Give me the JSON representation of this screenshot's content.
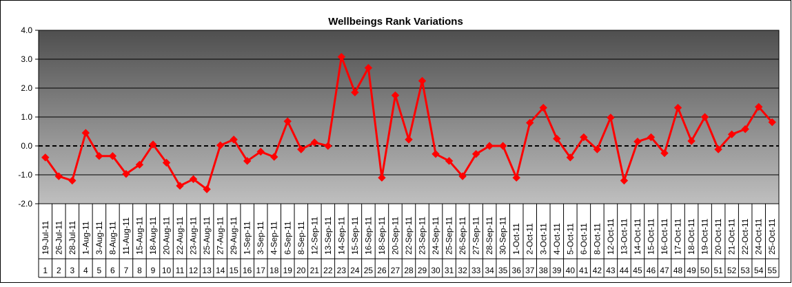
{
  "chart_data": {
    "type": "line",
    "title": "Wellbeings Rank Variations",
    "xlabel": "",
    "ylabel": "",
    "ylim": [
      -2.0,
      4.0
    ],
    "y_ticks": [
      "4.0",
      "3.0",
      "2.0",
      "1.0",
      "0.0",
      "-1.0",
      "-2.0"
    ],
    "grid": true,
    "legend": "none",
    "colors": {
      "line": "#ff0000",
      "plot_top": "#4f4f4f",
      "plot_bottom": "#bfbfbf",
      "grid": "#000000"
    },
    "categories": [
      "19-Jul-11",
      "26-Jul-11",
      "28-Jul-11",
      "1-Aug-11",
      "3-Aug-11",
      "8-Aug-11",
      "11-Aug-11",
      "15-Aug-11",
      "18-Aug-11",
      "20-Aug-11",
      "22-Aug-11",
      "23-Aug-11",
      "25-Aug-11",
      "27-Aug-11",
      "29-Aug-11",
      "1-Sep-11",
      "3-Sep-11",
      "4-Sep-11",
      "6-Sep-11",
      "8-Sep-11",
      "12-Sep-11",
      "13-Sep-11",
      "14-Sep-11",
      "15-Sep-11",
      "16-Sep-11",
      "18-Sep-11",
      "20-Sep-11",
      "22-Sep-11",
      "23-Sep-11",
      "24-Sep-11",
      "25-Sep-11",
      "26-Sep-11",
      "27-Sep-11",
      "28-Sep-11",
      "30-Sep-11",
      "1-Oct-11",
      "2-Oct-11",
      "3-Oct-11",
      "4-Oct-11",
      "5-Oct-11",
      "6-Oct-11",
      "8-Oct-11",
      "12-Oct-11",
      "13-Oct-11",
      "14-Oct-11",
      "15-Oct-11",
      "16-Oct-11",
      "17-Oct-11",
      "18-Oct-11",
      "19-Oct-11",
      "20-Oct-11",
      "21-Oct-11",
      "22-Oct-11",
      "24-Oct-11",
      "25-Oct-11"
    ],
    "index_labels": [
      "1",
      "2",
      "3",
      "4",
      "5",
      "6",
      "7",
      "8",
      "9",
      "10",
      "11",
      "12",
      "13",
      "14",
      "15",
      "16",
      "17",
      "18",
      "19",
      "20",
      "21",
      "22",
      "23",
      "24",
      "25",
      "26",
      "27",
      "28",
      "29",
      "30",
      "31",
      "32",
      "33",
      "34",
      "35",
      "36",
      "37",
      "38",
      "39",
      "40",
      "41",
      "42",
      "43",
      "44",
      "45",
      "46",
      "47",
      "48",
      "49",
      "50",
      "51",
      "52",
      "53",
      "54",
      "55"
    ],
    "series": [
      {
        "values": [
          -0.4,
          -1.05,
          -1.2,
          0.45,
          -0.35,
          -0.35,
          -0.97,
          -0.65,
          0.05,
          -0.58,
          -1.38,
          -1.15,
          -1.5,
          0.02,
          0.22,
          -0.52,
          -0.2,
          -0.38,
          0.85,
          -0.12,
          0.12,
          0.0,
          3.08,
          1.85,
          2.7,
          -1.1,
          1.75,
          0.22,
          2.25,
          -0.28,
          -0.52,
          -1.05,
          -0.28,
          0.0,
          0.0,
          -1.1,
          0.8,
          1.32,
          0.25,
          -0.4,
          0.3,
          -0.12,
          0.98,
          -1.2,
          0.15,
          0.3,
          -0.25,
          1.32,
          0.17,
          1.0,
          -0.12,
          0.4,
          0.58,
          1.35,
          0.82
        ]
      }
    ]
  }
}
